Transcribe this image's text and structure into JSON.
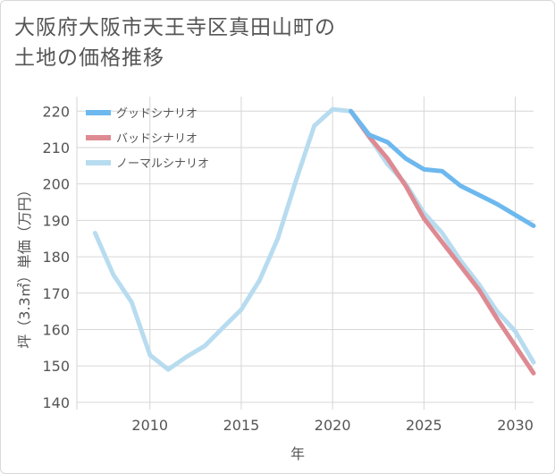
{
  "title": "大阪府大阪市天王寺区真田山町の\n土地の価格推移",
  "chart_data": {
    "type": "line",
    "title": "大阪府大阪市天王寺区真田山町の土地の価格推移",
    "xlabel": "年",
    "ylabel": "坪（3.3㎡）単価（万円）",
    "xlim": [
      2006,
      2031
    ],
    "ylim": [
      138,
      224
    ],
    "xticks": [
      2010,
      2015,
      2020,
      2025,
      2030
    ],
    "yticks": [
      140,
      150,
      160,
      170,
      180,
      190,
      200,
      210,
      220
    ],
    "grid": true,
    "legend_position": "top-left",
    "series": [
      {
        "name": "グッドシナリオ",
        "color": "#6db8ee",
        "x": [
          2021,
          2022,
          2023,
          2024,
          2025,
          2026,
          2027,
          2028,
          2029,
          2030,
          2031
        ],
        "y": [
          220,
          213.5,
          211.5,
          207,
          204,
          203.5,
          199.5,
          197,
          194.5,
          191.5,
          188.5
        ]
      },
      {
        "name": "バッドシナリオ",
        "color": "#de8a92",
        "x": [
          2021,
          2022,
          2023,
          2024,
          2025,
          2026,
          2027,
          2028,
          2029,
          2030,
          2031
        ],
        "y": [
          220,
          213,
          207,
          199.5,
          190.5,
          184,
          177.5,
          171,
          163,
          155.5,
          148
        ]
      },
      {
        "name": "ノーマルシナリオ",
        "color": "#b8dcef",
        "x": [
          2007,
          2008,
          2009,
          2010,
          2011,
          2012,
          2013,
          2014,
          2015,
          2016,
          2017,
          2018,
          2019,
          2020,
          2021,
          2022,
          2023,
          2024,
          2025,
          2026,
          2027,
          2028,
          2029,
          2030,
          2031
        ],
        "y": [
          186.5,
          175,
          167.5,
          153,
          149,
          152.5,
          155.5,
          160.5,
          165.5,
          173.5,
          185,
          201,
          216,
          220.5,
          220,
          213,
          205.5,
          200,
          192,
          186.5,
          179,
          172.5,
          165,
          159.5,
          151
        ]
      }
    ]
  }
}
